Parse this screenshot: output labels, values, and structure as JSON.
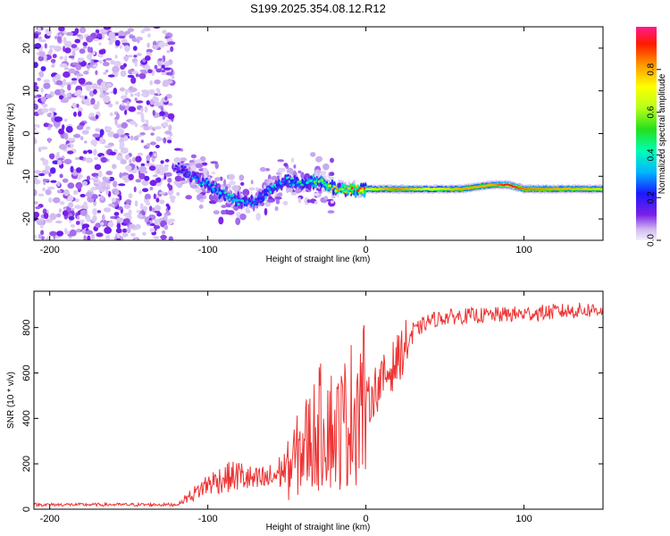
{
  "title": "S199.2025.354.08.12.R12",
  "chart_data": [
    {
      "type": "heatmap",
      "title": "",
      "xlabel": "Height of straight line (km)",
      "ylabel": "Frequency (Hz)",
      "xlim": [
        -210,
        150
      ],
      "ylim": [
        -25,
        25
      ],
      "xticks": [
        -200,
        -100,
        0,
        100
      ],
      "yticks": [
        -20,
        -10,
        0,
        10,
        20
      ],
      "colorbar": {
        "label": "Normalized spectral amplitude",
        "range": [
          0,
          1
        ],
        "ticks": [
          0.0,
          0.2,
          0.4,
          0.6,
          0.8
        ],
        "tick_labels": [
          "0.0",
          "0.2",
          "0.4",
          "0.6",
          "0.8"
        ]
      },
      "ridge": {
        "x": [
          -120,
          -110,
          -100,
          -90,
          -80,
          -70,
          -60,
          -50,
          -40,
          -30,
          -20,
          -10,
          0,
          20,
          40,
          60,
          80,
          90,
          100,
          120,
          150
        ],
        "freq": [
          -8,
          -10,
          -12,
          -14,
          -16,
          -16,
          -13,
          -11,
          -12,
          -11,
          -13,
          -13,
          -13,
          -13,
          -13,
          -13,
          -12,
          -12,
          -13,
          -13,
          -13
        ],
        "amplitude": [
          0.15,
          0.25,
          0.3,
          0.3,
          0.35,
          0.25,
          0.3,
          0.3,
          0.35,
          0.45,
          0.6,
          0.7,
          0.7,
          0.85,
          0.7,
          0.8,
          0.8,
          0.95,
          0.85,
          0.8,
          0.75
        ]
      }
    },
    {
      "type": "line",
      "title": "",
      "xlabel": "Height of straight line (km)",
      "ylabel": "SNR (10 * v/v)",
      "xlim": [
        -210,
        150
      ],
      "ylim": [
        0,
        960
      ],
      "xticks": [
        -200,
        -100,
        0,
        100
      ],
      "yticks": [
        0,
        200,
        400,
        600,
        800
      ],
      "series": [
        {
          "name": "SNR",
          "color": "#ee3333",
          "x": [
            -210,
            -200,
            -180,
            -160,
            -140,
            -120,
            -110,
            -100,
            -90,
            -80,
            -70,
            -60,
            -50,
            -40,
            -30,
            -25,
            -20,
            -10,
            -5,
            0,
            5,
            10,
            20,
            30,
            40,
            50,
            60,
            80,
            100,
            120,
            150
          ],
          "values": [
            20,
            20,
            20,
            20,
            20,
            20,
            50,
            90,
            110,
            120,
            100,
            110,
            150,
            250,
            320,
            380,
            300,
            380,
            450,
            450,
            520,
            560,
            660,
            780,
            830,
            845,
            850,
            855,
            860,
            870,
            880
          ]
        }
      ]
    }
  ]
}
